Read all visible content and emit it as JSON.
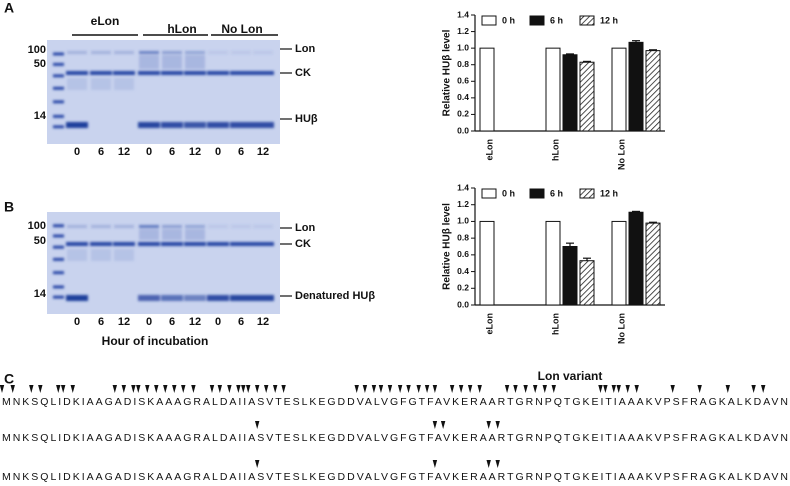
{
  "panel_labels": [
    "A",
    "B",
    "C"
  ],
  "gels": [
    {
      "groups": [
        "eLon",
        "hLon",
        "No Lon"
      ],
      "markers": [
        "100",
        "50",
        "14"
      ],
      "bands": [
        "Lon",
        "CK",
        "HUβ"
      ],
      "lanes": [
        "0",
        "6",
        "12",
        "0",
        "6",
        "12",
        "0",
        "6",
        "12"
      ]
    },
    {
      "markers": [
        "100",
        "50",
        "14"
      ],
      "bands": [
        "Lon",
        "CK",
        "Denatured HUβ"
      ],
      "lanes": [
        "0",
        "6",
        "12",
        "0",
        "6",
        "12",
        "0",
        "6",
        "12"
      ],
      "xlabel": "Hour of incubation"
    }
  ],
  "chart_data": [
    {
      "type": "bar",
      "ylabel": "Relative HUβ level",
      "categories": [
        "eLon",
        "hLon",
        "No Lon"
      ],
      "series": [
        {
          "name": "0 h",
          "color": "#ffffff",
          "values": [
            1.0,
            1.0,
            1.0
          ],
          "errors": [
            null,
            null,
            null
          ]
        },
        {
          "name": "6 h",
          "color": "#111111",
          "values": [
            0,
            0.92,
            1.07
          ],
          "errors": [
            null,
            0.01,
            0.02
          ]
        },
        {
          "name": "12 h",
          "color": "#ffffff",
          "hatch": true,
          "values": [
            0,
            0.83,
            0.97
          ],
          "errors": [
            null,
            0.01,
            0.01
          ]
        }
      ],
      "ylim": [
        0,
        1.4
      ],
      "yticks": [
        {
          "value": 0,
          "label": "0.0"
        },
        0.2,
        0.4,
        0.6,
        0.8,
        {
          "value": 1,
          "label": "1.0"
        },
        1.2,
        1.4
      ],
      "legend": "top"
    },
    {
      "type": "bar",
      "ylabel": "Relative HUβ level",
      "xlabel": "Lon variant",
      "categories": [
        "eLon",
        "hLon",
        "No Lon"
      ],
      "series": [
        {
          "name": "0 h",
          "color": "#ffffff",
          "values": [
            1.0,
            1.0,
            1.0
          ],
          "errors": [
            null,
            null,
            null
          ]
        },
        {
          "name": "6 h",
          "color": "#111111",
          "values": [
            0,
            0.7,
            1.11
          ],
          "errors": [
            null,
            0.04,
            0.01
          ]
        },
        {
          "name": "12 h",
          "color": "#ffffff",
          "hatch": true,
          "values": [
            0,
            0.53,
            0.98
          ],
          "errors": [
            null,
            0.03,
            0.01
          ]
        }
      ],
      "ylim": [
        0,
        1.4
      ],
      "yticks": [
        {
          "value": 0,
          "label": "0.0"
        },
        0.2,
        0.4,
        0.6,
        0.8,
        {
          "value": 1,
          "label": "1.0"
        },
        1.2,
        1.4
      ],
      "legend": "top"
    }
  ],
  "sequence": {
    "text": "MNKSQLIDKIAAGADISKAAAGRALDAIIASVTESLKEGDDVALVGFGTFAVKERAARTGRNPQTGKEITIAAAKVPSFRAGKALKDAVN",
    "rows": [
      [
        0,
        1,
        3,
        4,
        6,
        7,
        8,
        13,
        14,
        15,
        16,
        17,
        18,
        19,
        20,
        21,
        22,
        24,
        25,
        26,
        27,
        28,
        29,
        30,
        31,
        32,
        33,
        41,
        42,
        43,
        44,
        45,
        46,
        47,
        48,
        49,
        50,
        52,
        53,
        54,
        55,
        58,
        59,
        60,
        61,
        62,
        63,
        68,
        69,
        70,
        71,
        72,
        73,
        77,
        80,
        83,
        86,
        87
      ],
      [
        30,
        50,
        51,
        56,
        57
      ],
      [
        30,
        50,
        56,
        57
      ]
    ]
  }
}
